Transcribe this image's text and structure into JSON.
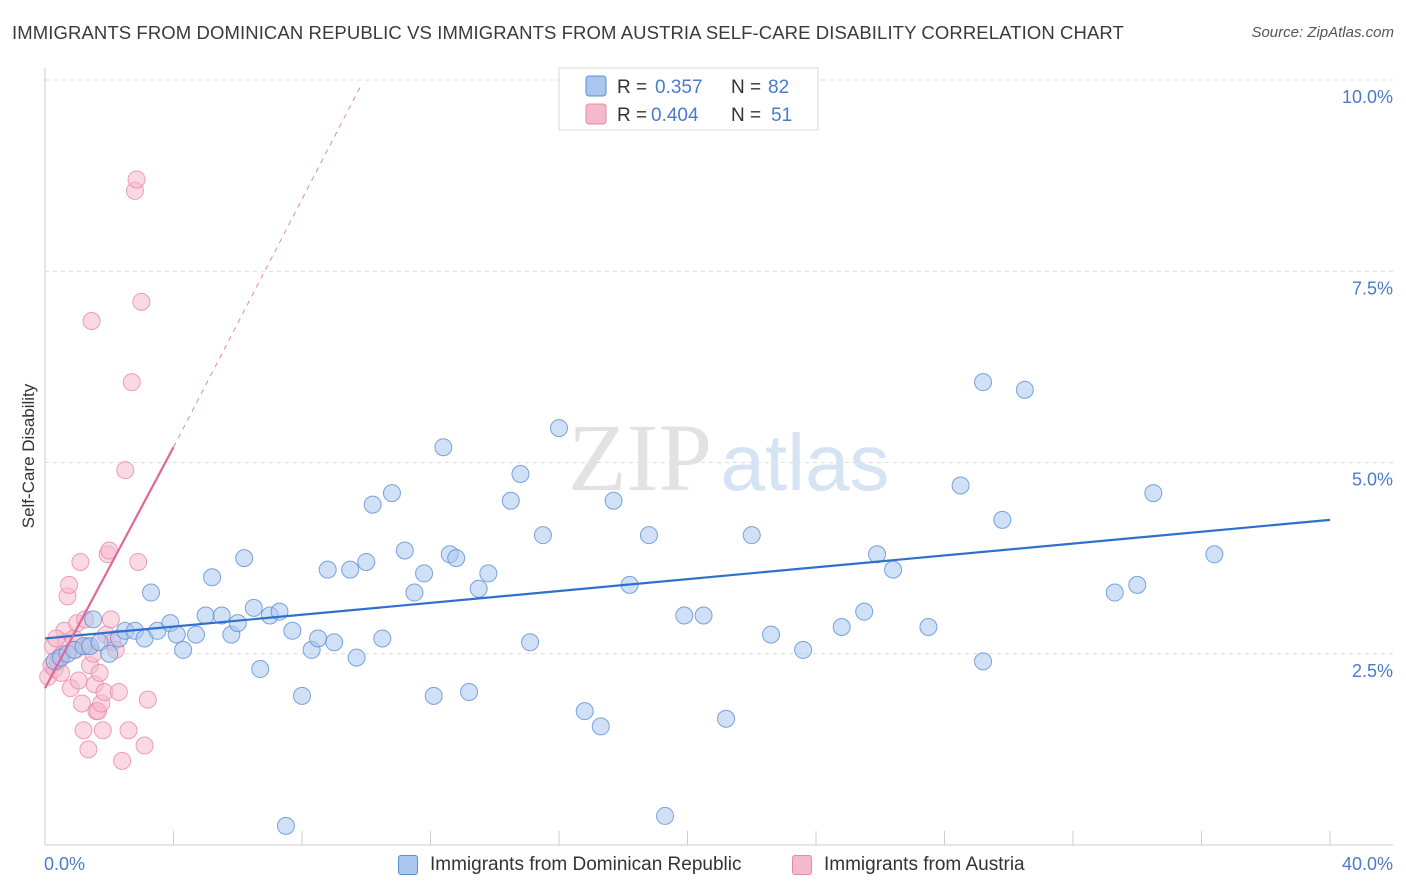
{
  "title": "IMMIGRANTS FROM DOMINICAN REPUBLIC VS IMMIGRANTS FROM AUSTRIA SELF-CARE DISABILITY CORRELATION CHART",
  "source": "Source: ZipAtlas.com",
  "watermark": {
    "zip": "ZIP",
    "atlas": "atlas"
  },
  "colors": {
    "blue": "#5b8fd6",
    "blue_fill": "#a9c6ef",
    "blue_line": "#2f6fcf",
    "pink": "#e889a8",
    "pink_fill": "#f5b9cc",
    "pink_line": "#e0679a",
    "axis_label": "#4a7bc8",
    "grid": "#dcdcdc"
  },
  "legend": {
    "rows": [
      {
        "r_label": "R =",
        "r_value": "0.357",
        "n_label": "N =",
        "n_value": "82"
      },
      {
        "r_label": "R =",
        "r_value": "0.404",
        "n_label": "N =",
        "n_value": "51"
      }
    ]
  },
  "chart_data": {
    "type": "scatter",
    "ylabel": "Self-Care Disability",
    "xlim": [
      0,
      40
    ],
    "ylim": [
      0,
      10.0
    ],
    "x_ticks": [
      0,
      4,
      8,
      12,
      16,
      20,
      24,
      28,
      32,
      36,
      40
    ],
    "x_tick_labels_shown": [
      "0.0%",
      "40.0%"
    ],
    "y_ticks": [
      2.5,
      5.0,
      7.5,
      10.0
    ],
    "y_tick_labels": [
      "2.5%",
      "5.0%",
      "7.5%",
      "10.0%"
    ],
    "grid": true,
    "legend_position": "top-center",
    "series": [
      {
        "name": "Immigrants from Dominican Republic",
        "color": "#5b8fd6",
        "trend": {
          "x": [
            0,
            40
          ],
          "y": [
            2.7,
            4.25
          ]
        },
        "points": [
          [
            0.3,
            2.4
          ],
          [
            0.5,
            2.45
          ],
          [
            0.7,
            2.5
          ],
          [
            0.9,
            2.55
          ],
          [
            1.2,
            2.6
          ],
          [
            1.4,
            2.6
          ],
          [
            1.5,
            2.95
          ],
          [
            1.7,
            2.65
          ],
          [
            2.0,
            2.5
          ],
          [
            2.3,
            2.7
          ],
          [
            2.5,
            2.8
          ],
          [
            2.8,
            2.8
          ],
          [
            3.1,
            2.7
          ],
          [
            3.3,
            3.3
          ],
          [
            3.5,
            2.8
          ],
          [
            3.9,
            2.9
          ],
          [
            4.1,
            2.75
          ],
          [
            4.3,
            2.55
          ],
          [
            4.7,
            2.75
          ],
          [
            5.0,
            3.0
          ],
          [
            5.2,
            3.5
          ],
          [
            5.5,
            3.0
          ],
          [
            5.8,
            2.75
          ],
          [
            6.0,
            2.9
          ],
          [
            6.2,
            3.75
          ],
          [
            6.5,
            3.1
          ],
          [
            6.7,
            2.3
          ],
          [
            7.0,
            3.0
          ],
          [
            7.3,
            3.05
          ],
          [
            7.5,
            0.25
          ],
          [
            7.7,
            2.8
          ],
          [
            8.0,
            1.95
          ],
          [
            8.3,
            2.55
          ],
          [
            8.5,
            2.7
          ],
          [
            8.8,
            3.6
          ],
          [
            9.0,
            2.65
          ],
          [
            9.5,
            3.6
          ],
          [
            9.7,
            2.45
          ],
          [
            10.0,
            3.7
          ],
          [
            10.2,
            4.45
          ],
          [
            10.5,
            2.7
          ],
          [
            10.8,
            4.6
          ],
          [
            11.2,
            3.85
          ],
          [
            11.5,
            3.3
          ],
          [
            11.8,
            3.55
          ],
          [
            12.1,
            1.95
          ],
          [
            12.4,
            5.2
          ],
          [
            12.6,
            3.8
          ],
          [
            12.8,
            3.75
          ],
          [
            13.2,
            2.0
          ],
          [
            13.5,
            3.35
          ],
          [
            13.8,
            3.55
          ],
          [
            14.5,
            4.5
          ],
          [
            14.8,
            4.85
          ],
          [
            15.1,
            2.65
          ],
          [
            15.5,
            4.05
          ],
          [
            16.0,
            5.45
          ],
          [
            16.8,
            1.75
          ],
          [
            17.3,
            1.55
          ],
          [
            17.7,
            4.5
          ],
          [
            18.2,
            3.4
          ],
          [
            18.8,
            4.05
          ],
          [
            19.3,
            0.38
          ],
          [
            19.9,
            3.0
          ],
          [
            20.5,
            3.0
          ],
          [
            21.2,
            1.65
          ],
          [
            22.0,
            4.05
          ],
          [
            22.6,
            2.75
          ],
          [
            23.6,
            2.55
          ],
          [
            24.8,
            2.85
          ],
          [
            25.5,
            3.05
          ],
          [
            25.9,
            3.8
          ],
          [
            26.4,
            3.6
          ],
          [
            27.5,
            2.85
          ],
          [
            28.5,
            4.7
          ],
          [
            29.2,
            2.4
          ],
          [
            29.8,
            4.25
          ],
          [
            29.2,
            6.05
          ],
          [
            30.5,
            5.95
          ],
          [
            33.3,
            3.3
          ],
          [
            34.0,
            3.4
          ],
          [
            34.5,
            4.6
          ],
          [
            36.4,
            3.8
          ]
        ]
      },
      {
        "name": "Immigrants from Austria",
        "color": "#e889a8",
        "trend": {
          "x": [
            0,
            4.0
          ],
          "y": [
            2.05,
            5.2
          ]
        },
        "trend_extension": {
          "x": [
            4.0,
            9.8
          ],
          "y": [
            5.2,
            9.9
          ]
        },
        "points": [
          [
            0.1,
            2.2
          ],
          [
            0.2,
            2.35
          ],
          [
            0.25,
            2.6
          ],
          [
            0.3,
            2.3
          ],
          [
            0.4,
            2.4
          ],
          [
            0.5,
            2.25
          ],
          [
            0.55,
            2.5
          ],
          [
            0.6,
            2.8
          ],
          [
            0.65,
            2.65
          ],
          [
            0.7,
            3.25
          ],
          [
            0.75,
            3.4
          ],
          [
            0.8,
            2.05
          ],
          [
            0.9,
            2.7
          ],
          [
            0.95,
            2.55
          ],
          [
            1.0,
            2.9
          ],
          [
            1.05,
            2.15
          ],
          [
            1.1,
            3.7
          ],
          [
            1.15,
            1.85
          ],
          [
            1.2,
            1.5
          ],
          [
            1.25,
            2.95
          ],
          [
            1.3,
            2.6
          ],
          [
            1.35,
            1.25
          ],
          [
            1.4,
            2.35
          ],
          [
            1.45,
            6.85
          ],
          [
            1.5,
            2.5
          ],
          [
            1.55,
            2.1
          ],
          [
            1.6,
            1.75
          ],
          [
            1.65,
            1.75
          ],
          [
            1.7,
            2.25
          ],
          [
            1.75,
            1.85
          ],
          [
            1.8,
            1.5
          ],
          [
            1.85,
            2.0
          ],
          [
            1.9,
            2.75
          ],
          [
            1.95,
            3.8
          ],
          [
            2.0,
            3.85
          ],
          [
            2.05,
            2.95
          ],
          [
            2.1,
            2.65
          ],
          [
            2.2,
            2.55
          ],
          [
            2.3,
            2.0
          ],
          [
            2.4,
            1.1
          ],
          [
            2.5,
            4.9
          ],
          [
            2.6,
            1.5
          ],
          [
            2.7,
            6.05
          ],
          [
            2.8,
            8.55
          ],
          [
            2.85,
            8.7
          ],
          [
            2.9,
            3.7
          ],
          [
            3.0,
            7.1
          ],
          [
            3.1,
            1.3
          ],
          [
            3.2,
            1.9
          ],
          [
            0.45,
            2.45
          ],
          [
            0.35,
            2.7
          ]
        ]
      }
    ]
  }
}
